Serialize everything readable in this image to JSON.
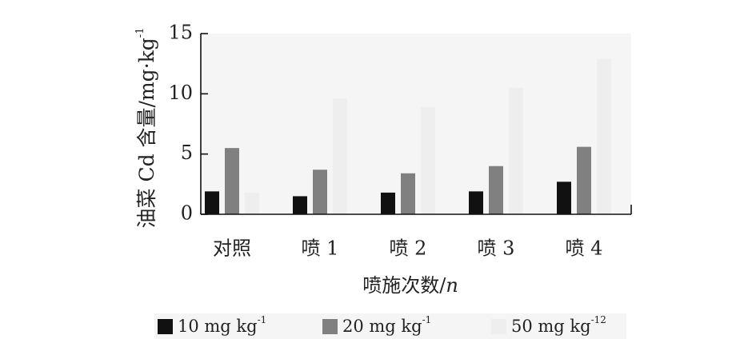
{
  "chart_data": {
    "type": "bar",
    "categories": [
      "对照",
      "喷 1",
      "喷 2",
      "喷 3",
      "喷 4"
    ],
    "series": [
      {
        "name": "10 mg kg",
        "sup": "-1",
        "color": "#111111",
        "values": [
          1.9,
          1.5,
          1.8,
          1.9,
          2.7
        ]
      },
      {
        "name": "20 mg kg",
        "sup": "-1",
        "color": "#808080",
        "values": [
          5.5,
          3.7,
          3.4,
          4.0,
          5.6
        ]
      },
      {
        "name": "50 mg kg",
        "sup": "-12",
        "color": "#eeeeee",
        "values": [
          1.8,
          9.6,
          8.9,
          10.5,
          12.9
        ]
      }
    ],
    "xlabel": "喷施次数/",
    "xlabel_italic": "n",
    "ylabel": "油菜 Cd 含量/mg·kg",
    "ylabel_sup": "-1",
    "ylim": [
      0,
      15
    ],
    "yticks": [
      "0",
      "5",
      "10",
      "15"
    ],
    "grid": false,
    "legend_position": "bottom"
  }
}
